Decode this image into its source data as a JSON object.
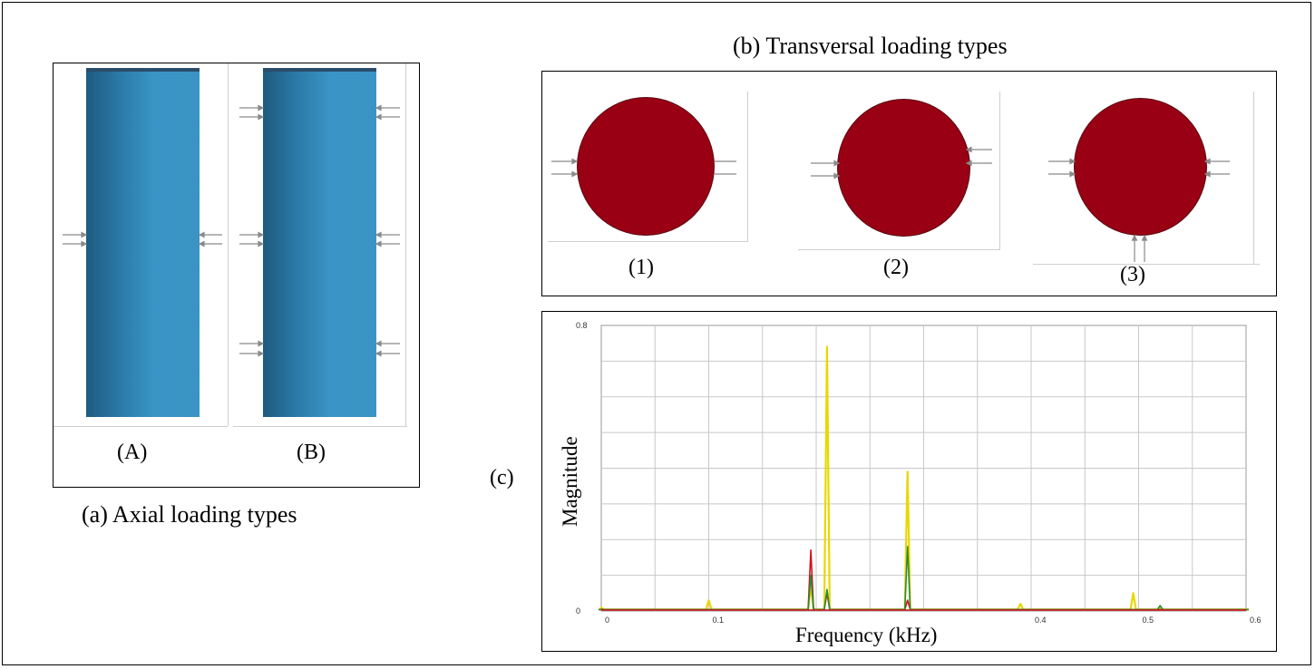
{
  "panel_a": {
    "caption": "(a)  Axial loading types",
    "labels": [
      "(A)",
      "(B)"
    ]
  },
  "panel_b": {
    "title": "(b) Transversal loading types",
    "labels": [
      "(1)",
      "(2)",
      "(3)"
    ]
  },
  "panel_c": {
    "letter": "(c)",
    "xlabel": "Frequency (kHz)",
    "ylabel": "Magnitude"
  },
  "colors": {
    "cylinder": "#2f86b8",
    "disc": "#990014",
    "yellow_series": "#e8d800",
    "red_series": "#d4101a",
    "green_series": "#2c8a3c",
    "grid": "#c8c8c8"
  },
  "chart_data": {
    "type": "line",
    "title": "",
    "xlabel": "Frequency (kHz)",
    "ylabel": "Magnitude",
    "xlim": [
      0,
      0.6
    ],
    "ylim": [
      0,
      0.8
    ],
    "x_ticks": [
      "0",
      "0.1",
      "0.4",
      "0.5",
      "0.6"
    ],
    "x_tick_values": [
      0,
      0.1,
      0.4,
      0.5,
      0.6
    ],
    "y_ticks": [
      "0",
      "0.8"
    ],
    "y_tick_values": [
      0,
      0.8
    ],
    "grid": true,
    "series": [
      {
        "color": "#e8d800",
        "x": [
          0,
          0.1,
          0.195,
          0.21,
          0.285,
          0.39,
          0.495,
          0.52,
          0.6
        ],
        "y": [
          0.01,
          0.03,
          0.07,
          0.74,
          0.39,
          0.02,
          0.05,
          0.01,
          0.005
        ]
      },
      {
        "color": "#d4101a",
        "x": [
          0,
          0.195,
          0.21,
          0.285,
          0.6
        ],
        "y": [
          0.005,
          0.17,
          0.05,
          0.03,
          0.003
        ]
      },
      {
        "color": "#2c8a3c",
        "x": [
          0,
          0.195,
          0.21,
          0.285,
          0.52,
          0.6
        ],
        "y": [
          0.004,
          0.1,
          0.06,
          0.18,
          0.015,
          0.003
        ]
      }
    ]
  }
}
